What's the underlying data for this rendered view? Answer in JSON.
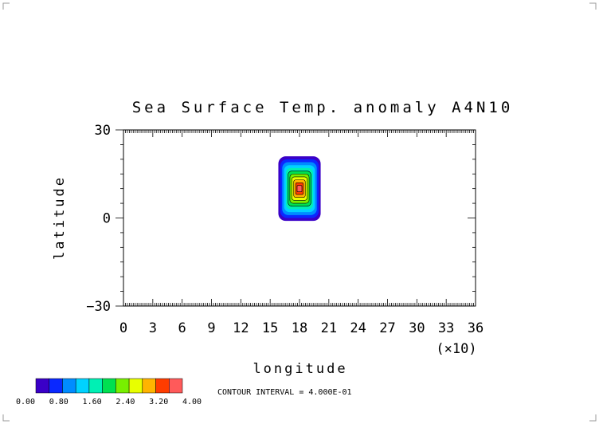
{
  "chart_data": {
    "type": "heatmap",
    "title": "Sea Surface Temp. anomaly A4N10",
    "xlabel": "longitude",
    "ylabel": "latitude",
    "x_scale_note": "(×10)",
    "xlim": [
      0,
      36
    ],
    "ylim": [
      -30,
      30
    ],
    "x_ticks": [
      0,
      3,
      6,
      9,
      12,
      15,
      18,
      21,
      24,
      27,
      30,
      33,
      36
    ],
    "x_tick_labels": [
      "0",
      "3",
      "6",
      "9",
      "12",
      "15",
      "18",
      "21",
      "24",
      "27",
      "30",
      "33",
      "36"
    ],
    "y_ticks": [
      -30,
      0,
      30
    ],
    "y_tick_labels": [
      "−30",
      "0",
      "30"
    ],
    "contour_interval_text": "CONTOUR INTERVAL = 4.000E-01",
    "contour_levels": [
      0,
      0.4,
      0.8,
      1.2,
      1.6,
      2.0,
      2.4,
      2.8,
      3.2,
      3.6,
      4.0
    ],
    "colorbar_labels": [
      "0.00",
      "0.80",
      "1.60",
      "2.40",
      "3.20",
      "4.00"
    ],
    "colorbar_colors": [
      "#3a00c8",
      "#0a28ff",
      "#008cff",
      "#00d2ff",
      "#00f0b4",
      "#00e050",
      "#78f000",
      "#e8ff00",
      "#ffb400",
      "#ff3c00",
      "#ff5a5a"
    ],
    "anomaly": {
      "center_lon_x10": 18,
      "center_lat": 10,
      "peak_value": 4.0,
      "lon_extent_x10": [
        16,
        20
      ],
      "lat_extent": [
        -1,
        21
      ]
    }
  }
}
